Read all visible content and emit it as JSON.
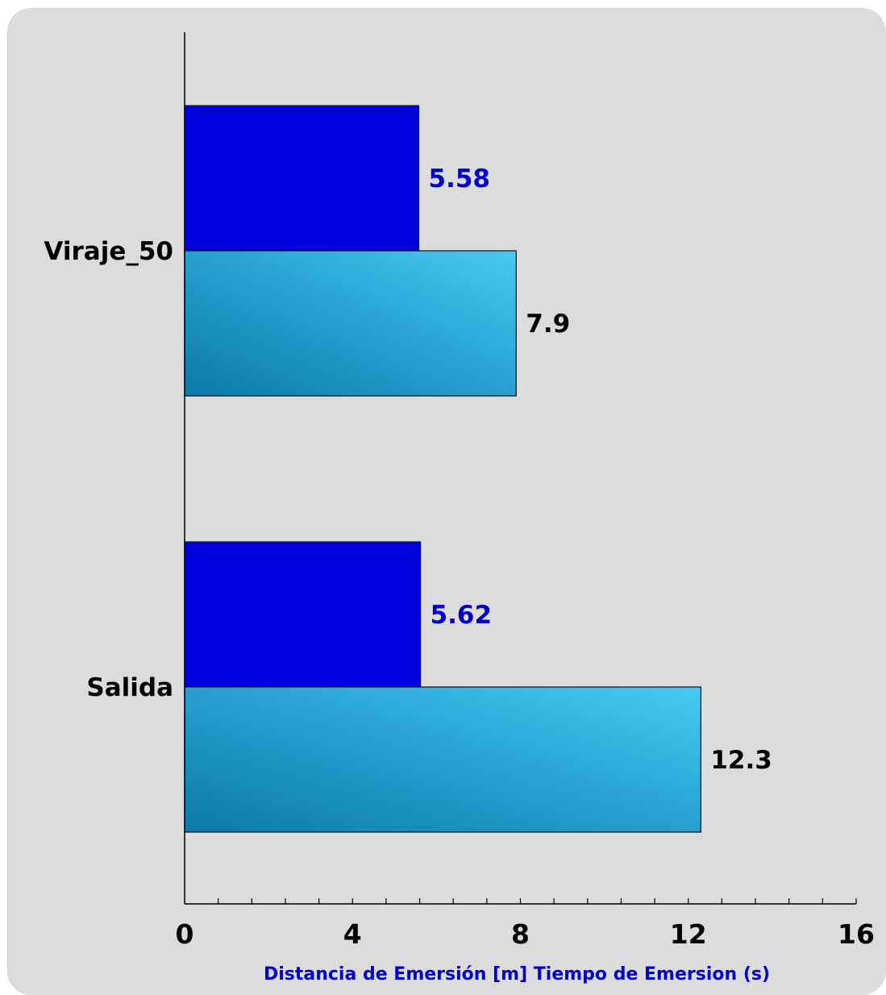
{
  "chart_data": {
    "type": "bar",
    "orientation": "horizontal",
    "categories": [
      "Viraje_50",
      "Salida"
    ],
    "series": [
      {
        "values": [
          5.58,
          5.62
        ],
        "color": "#0000dd",
        "label_color": "#0000cc"
      },
      {
        "values": [
          7.9,
          12.3
        ],
        "color": "#2aa3d3",
        "label_color": "#000000"
      }
    ],
    "value_labels": [
      [
        "5.58",
        "5.62"
      ],
      [
        "7.9",
        "12.3"
      ]
    ],
    "xlim": [
      0,
      16
    ],
    "x_ticks": [
      0,
      4,
      8,
      12,
      16
    ],
    "x_tick_labels": [
      "0",
      "4",
      "8",
      "12",
      "16"
    ],
    "x_minor_step": 0.8,
    "xlabel": "Distancia de Emersión [m] Tiempo de Emersion (s)",
    "grid": false
  }
}
